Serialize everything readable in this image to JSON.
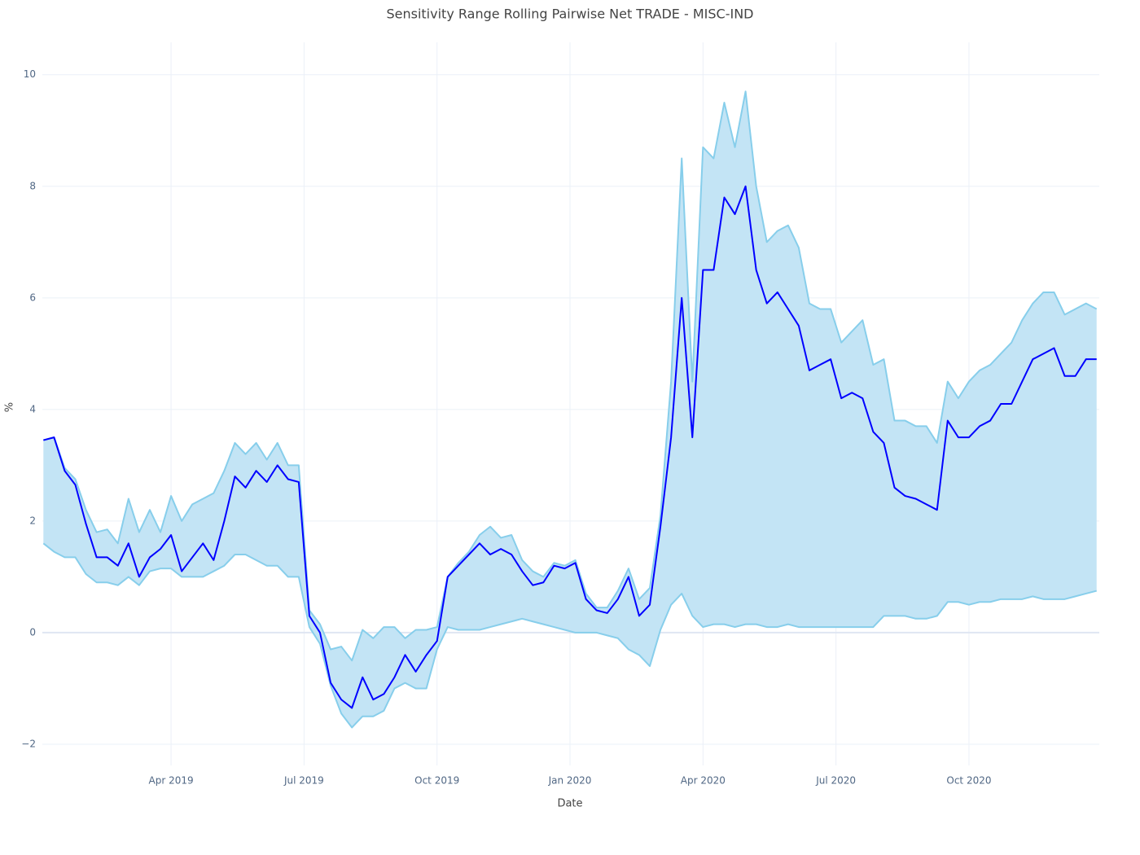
{
  "chart_data": {
    "type": "line",
    "title": "Sensitivity Range Rolling Pairwise Net TRADE - MISC-IND",
    "x_label": "Date",
    "y_label": "%",
    "x": [
      2019.01,
      2019.03,
      2019.05,
      2019.07,
      2019.09,
      2019.11,
      2019.13,
      2019.15,
      2019.17,
      2019.19,
      2019.21,
      2019.23,
      2019.25,
      2019.27,
      2019.29,
      2019.31,
      2019.33,
      2019.35,
      2019.37,
      2019.39,
      2019.41,
      2019.43,
      2019.45,
      2019.47,
      2019.49,
      2019.51,
      2019.53,
      2019.55,
      2019.57,
      2019.59,
      2019.61,
      2019.63,
      2019.65,
      2019.67,
      2019.69,
      2019.71,
      2019.73,
      2019.75,
      2019.77,
      2019.79,
      2019.81,
      2019.83,
      2019.85,
      2019.87,
      2019.89,
      2019.91,
      2019.93,
      2019.95,
      2019.97,
      2019.99,
      2020.01,
      2020.03,
      2020.05,
      2020.07,
      2020.09,
      2020.11,
      2020.13,
      2020.15,
      2020.17,
      2020.19,
      2020.21,
      2020.23,
      2020.25,
      2020.27,
      2020.29,
      2020.31,
      2020.33,
      2020.35,
      2020.37,
      2020.39,
      2020.41,
      2020.43,
      2020.45,
      2020.47,
      2020.49,
      2020.51,
      2020.53,
      2020.55,
      2020.57,
      2020.59,
      2020.61,
      2020.63,
      2020.65,
      2020.67,
      2020.69,
      2020.71,
      2020.73,
      2020.75,
      2020.77,
      2020.79,
      2020.81,
      2020.83,
      2020.85,
      2020.87,
      2020.89,
      2020.91,
      2020.93,
      2020.95,
      2020.97,
      2020.99
    ],
    "series": [
      {
        "color": "#87ceeb",
        "values": [
          3.45,
          3.5,
          2.95,
          2.75,
          2.2,
          1.8,
          1.85,
          1.6,
          2.4,
          1.8,
          2.2,
          1.8,
          2.45,
          2.0,
          2.3,
          2.4,
          2.5,
          2.9,
          3.4,
          3.2,
          3.4,
          3.1,
          3.4,
          3.0,
          3.0,
          0.4,
          0.15,
          -0.3,
          -0.25,
          -0.5,
          0.05,
          -0.1,
          0.1,
          0.1,
          -0.1,
          0.05,
          0.05,
          0.1,
          1.0,
          1.25,
          1.45,
          1.75,
          1.9,
          1.7,
          1.75,
          1.3,
          1.1,
          1.0,
          1.25,
          1.2,
          1.3,
          0.7,
          0.45,
          0.45,
          0.75,
          1.15,
          0.6,
          0.8,
          2.1,
          4.5,
          8.5,
          4.5,
          8.7,
          8.5,
          9.5,
          8.7,
          9.7,
          8.0,
          7.0,
          7.2,
          7.3,
          6.9,
          5.9,
          5.8,
          5.8,
          5.2,
          5.4,
          5.6,
          4.8,
          4.9,
          3.8,
          3.8,
          3.7,
          3.7,
          3.4,
          4.5,
          4.2,
          4.5,
          4.7,
          4.8,
          5.0,
          5.2,
          5.6,
          5.9,
          6.1,
          6.1,
          5.7,
          5.8,
          5.9,
          5.8
        ]
      },
      {
        "color": "#87ceeb",
        "values": [
          1.6,
          1.45,
          1.35,
          1.35,
          1.05,
          0.9,
          0.9,
          0.85,
          1.0,
          0.85,
          1.1,
          1.15,
          1.15,
          1.0,
          1.0,
          1.0,
          1.1,
          1.2,
          1.4,
          1.4,
          1.3,
          1.2,
          1.2,
          1.0,
          1.0,
          0.1,
          -0.2,
          -0.95,
          -1.45,
          -1.7,
          -1.5,
          -1.5,
          -1.4,
          -1.0,
          -0.9,
          -1.0,
          -1.0,
          -0.3,
          0.1,
          0.05,
          0.05,
          0.05,
          0.1,
          0.15,
          0.2,
          0.25,
          0.2,
          0.15,
          0.1,
          0.05,
          0.0,
          0.0,
          0.0,
          -0.05,
          -0.1,
          -0.3,
          -0.4,
          -0.6,
          0.05,
          0.5,
          0.7,
          0.3,
          0.1,
          0.15,
          0.15,
          0.1,
          0.15,
          0.15,
          0.1,
          0.1,
          0.15,
          0.1,
          0.1,
          0.1,
          0.1,
          0.1,
          0.1,
          0.1,
          0.1,
          0.3,
          0.3,
          0.3,
          0.25,
          0.25,
          0.3,
          0.55,
          0.55,
          0.5,
          0.55,
          0.55,
          0.6,
          0.6,
          0.6,
          0.65,
          0.6,
          0.6,
          0.6,
          0.65,
          0.7,
          0.75
        ]
      },
      {
        "color": "#0000ff",
        "values": [
          3.45,
          3.5,
          2.9,
          2.65,
          1.95,
          1.35,
          1.35,
          1.2,
          1.6,
          1.0,
          1.35,
          1.5,
          1.75,
          1.1,
          1.35,
          1.6,
          1.3,
          2.0,
          2.8,
          2.6,
          2.9,
          2.7,
          3.0,
          2.75,
          2.7,
          0.3,
          0.0,
          -0.9,
          -1.2,
          -1.35,
          -0.8,
          -1.2,
          -1.1,
          -0.8,
          -0.4,
          -0.7,
          -0.4,
          -0.15,
          1.0,
          1.2,
          1.4,
          1.6,
          1.4,
          1.5,
          1.4,
          1.1,
          0.85,
          0.9,
          1.2,
          1.15,
          1.25,
          0.6,
          0.4,
          0.35,
          0.6,
          1.0,
          0.3,
          0.5,
          1.9,
          3.5,
          6.0,
          3.5,
          6.5,
          6.5,
          7.8,
          7.5,
          8.0,
          6.5,
          5.9,
          6.1,
          5.8,
          5.5,
          4.7,
          4.8,
          4.9,
          4.2,
          4.3,
          4.2,
          3.6,
          3.4,
          2.6,
          2.45,
          2.4,
          2.3,
          2.2,
          3.8,
          3.5,
          3.5,
          3.7,
          3.8,
          4.1,
          4.1,
          4.5,
          4.9,
          5.0,
          5.1,
          4.6,
          4.6,
          4.9,
          4.9
        ]
      }
    ],
    "band_fill": "#c3e4f5",
    "xlim": [
      2019.008,
      2020.995
    ],
    "xticks": [
      {
        "value": 2019.25,
        "label": "Apr 2019"
      },
      {
        "value": 2019.5,
        "label": "Jul 2019"
      },
      {
        "value": 2019.75,
        "label": "Oct 2019"
      },
      {
        "value": 2020.0,
        "label": "Jan 2020"
      },
      {
        "value": 2020.25,
        "label": "Apr 2020"
      },
      {
        "value": 2020.5,
        "label": "Jul 2020"
      },
      {
        "value": 2020.75,
        "label": "Oct 2020"
      }
    ],
    "ylim": [
      -2.38,
      10.58
    ],
    "yticks": [
      {
        "value": -2,
        "label": "−2"
      },
      0,
      2,
      4,
      6,
      8,
      10
    ],
    "grid": true
  }
}
